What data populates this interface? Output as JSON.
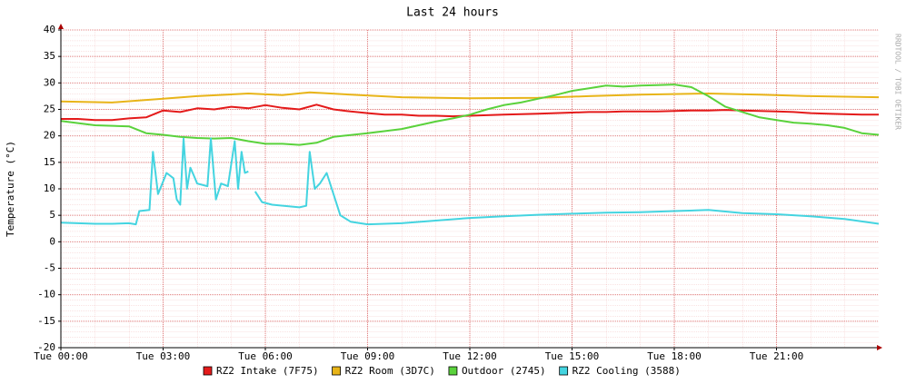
{
  "chart_data": {
    "type": "line",
    "title": "Last 24 hours",
    "y_label": "Temperature (°C)",
    "watermark": "RRDTOOL / TOBI OETIKER",
    "xlim": [
      0,
      24
    ],
    "ylim": [
      -20,
      40
    ],
    "xticks": [
      {
        "value": 0,
        "label": "Tue 00:00"
      },
      {
        "value": 3,
        "label": "Tue 03:00"
      },
      {
        "value": 6,
        "label": "Tue 06:00"
      },
      {
        "value": 9,
        "label": "Tue 09:00"
      },
      {
        "value": 12,
        "label": "Tue 12:00"
      },
      {
        "value": 15,
        "label": "Tue 15:00"
      },
      {
        "value": 18,
        "label": "Tue 18:00"
      },
      {
        "value": 21,
        "label": "Tue 21:00"
      }
    ],
    "yticks": [
      -20,
      -15,
      -10,
      -5,
      0,
      5,
      10,
      15,
      20,
      25,
      30,
      35,
      40
    ],
    "grid": true,
    "series": [
      {
        "name": "RZ2 Intake (7F75)",
        "color": "#e41a1a",
        "x": [
          0,
          0.5,
          1,
          1.5,
          2,
          2.5,
          3,
          3.5,
          4,
          4.5,
          5,
          5.5,
          6,
          6.5,
          7,
          7.5,
          8,
          8.5,
          9,
          9.5,
          10,
          10.5,
          11,
          11.5,
          12,
          12.5,
          13,
          13.5,
          14,
          14.5,
          15,
          15.5,
          16,
          16.5,
          17,
          17.5,
          18,
          18.5,
          19,
          19.5,
          20,
          20.5,
          21,
          21.5,
          22,
          22.5,
          23,
          23.5,
          24
        ],
        "values": [
          23.2,
          23.2,
          23,
          23,
          23.3,
          23.5,
          24.8,
          24.5,
          25.2,
          25,
          25.5,
          25.2,
          25.8,
          25.3,
          25,
          25.9,
          25,
          24.6,
          24.3,
          24,
          24,
          23.8,
          23.8,
          23.7,
          23.8,
          23.9,
          24,
          24.1,
          24.2,
          24.3,
          24.4,
          24.5,
          24.5,
          24.6,
          24.6,
          24.6,
          24.7,
          24.8,
          24.8,
          24.9,
          24.8,
          24.7,
          24.6,
          24.5,
          24.3,
          24.2,
          24.1,
          24,
          24
        ]
      },
      {
        "name": "RZ2 Room (3D7C)",
        "color": "#e8b418",
        "x": [
          0,
          1.5,
          3,
          4,
          5.5,
          6.5,
          7.3,
          8.5,
          10,
          12,
          14,
          15.5,
          17,
          19,
          20.5,
          22,
          24
        ],
        "values": [
          26.5,
          26.3,
          27,
          27.5,
          28,
          27.7,
          28.2,
          27.8,
          27.3,
          27.1,
          27.2,
          27.5,
          27.8,
          28,
          27.8,
          27.5,
          27.3
        ]
      },
      {
        "name": "Outdoor (2745)",
        "color": "#5ad23c",
        "x": [
          0,
          1,
          2,
          2.5,
          3,
          3.5,
          4,
          4.5,
          5,
          5.5,
          6,
          6.5,
          7,
          7.5,
          8,
          9,
          10,
          10.5,
          11,
          11.5,
          12,
          12.5,
          13,
          13.5,
          14,
          14.5,
          15,
          15.5,
          16,
          16.5,
          17,
          17.5,
          18,
          18.5,
          19,
          19.5,
          20,
          20.5,
          21,
          21.5,
          22,
          22.5,
          23,
          23.5,
          24
        ],
        "values": [
          22.8,
          22,
          21.8,
          20.5,
          20.2,
          19.8,
          19.6,
          19.5,
          19.6,
          19,
          18.5,
          18.5,
          18.3,
          18.7,
          19.8,
          20.5,
          21.3,
          22,
          22.7,
          23.3,
          24,
          25,
          25.8,
          26.3,
          27,
          27.7,
          28.5,
          29,
          29.5,
          29.3,
          29.5,
          29.6,
          29.7,
          29.2,
          27.5,
          25.5,
          24.5,
          23.5,
          23,
          22.5,
          22.3,
          22,
          21.5,
          20.5,
          20.2
        ]
      },
      {
        "name": "RZ2 Cooling (3588)",
        "color": "#44d4e0",
        "x": [
          0,
          0.5,
          1,
          1.5,
          2,
          2.2,
          2.3,
          2.6,
          2.7,
          2.85,
          3.1,
          3.3,
          3.4,
          3.5,
          3.6,
          3.7,
          3.8,
          3.9,
          4,
          4.3,
          4.4,
          4.55,
          4.7,
          4.9,
          5.1,
          5.2,
          5.3,
          5.4,
          5.5,
          5.55,
          5.7,
          5.9,
          6.2,
          7,
          7.2,
          7.3,
          7.45,
          7.6,
          7.8,
          8,
          8.2,
          8.5,
          9,
          10,
          11,
          12,
          13,
          14,
          15,
          16,
          17,
          18,
          19,
          20,
          21,
          22,
          23,
          24
        ],
        "values": [
          3.6,
          3.5,
          3.4,
          3.4,
          3.5,
          3.3,
          5.8,
          6,
          17,
          9,
          13,
          12,
          8,
          7,
          19.5,
          10,
          14,
          12.5,
          11,
          10.5,
          19.5,
          8,
          11,
          10.5,
          19,
          10,
          17,
          13,
          13.3,
          null,
          9.5,
          7.5,
          7,
          6.5,
          6.8,
          17,
          10,
          11,
          13,
          9,
          5,
          3.8,
          3.3,
          3.5,
          4,
          4.5,
          4.8,
          5.1,
          5.3,
          5.5,
          5.6,
          5.8,
          6,
          5.4,
          5.2,
          4.8,
          4.3,
          3.4
        ]
      }
    ]
  }
}
